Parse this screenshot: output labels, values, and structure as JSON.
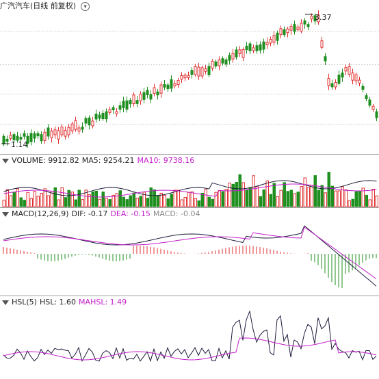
{
  "header": {
    "title": "广汽汽车(日线 前复权)"
  },
  "price_panel": {
    "high_label": "3.37",
    "low_label": "1.14"
  },
  "volume_panel": {
    "title": "VOLUME: 9912.82",
    "ma5": "MA5: 9254.21",
    "ma10": "MA10: 9738.16"
  },
  "macd_panel": {
    "title": "MACD(12,26,9)",
    "dif": "DIF: -0.17",
    "dea": "DEA: -0.15",
    "macd": "MACD: -0.04"
  },
  "hsl_panel": {
    "title": "HSL(5)",
    "hsl": "HSL: 1.60",
    "mahsl": "MAHSL: 1.49"
  },
  "colors": {
    "up": "#e03030",
    "down": "#1f8f1f",
    "magenta": "#c21cc9",
    "line_dark": "#1a1a3a",
    "grid": "#cfcfcf"
  },
  "chart_data": {
    "type": "candlestick",
    "title": "广汽汽车(日线 前复权)",
    "annotations": [
      "3.37",
      "1.14"
    ],
    "panels": [
      "price",
      "volume",
      "macd",
      "hsl"
    ]
  }
}
